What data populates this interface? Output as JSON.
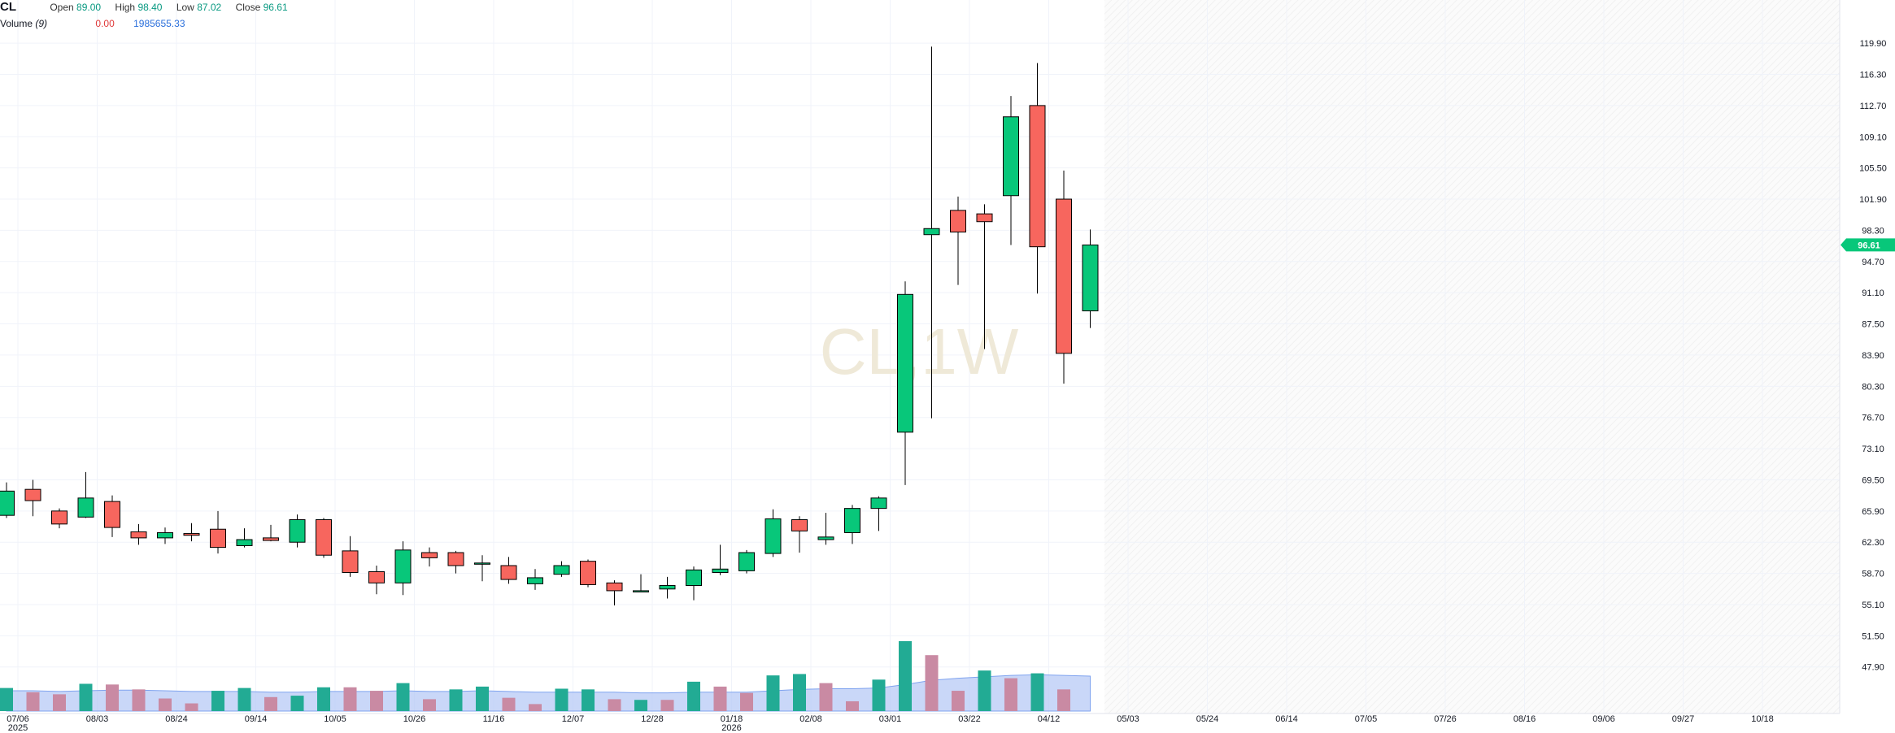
{
  "header": {
    "symbol": "CL",
    "open_label": "Open",
    "open": "89.00",
    "high_label": "High",
    "high": "98.40",
    "low_label": "Low",
    "low": "87.02",
    "close_label": "Close",
    "close": "96.61",
    "volume_label": "Volume",
    "volume_period": "(9)",
    "volume_change": "0.00",
    "volume_ma": "1985655.33"
  },
  "watermark": "CL,1W",
  "colors": {
    "up": "#08c77a",
    "down": "#f7665e",
    "up_volume": "#22ab94",
    "down_volume": "#c98aa3",
    "volume_ma_fill": "#b7c9f5",
    "price_tag": "#08c77a"
  },
  "chart_data": {
    "type": "candlestick",
    "x_axis_ticks": [
      "07/06",
      "08/03",
      "08/24",
      "09/14",
      "10/05",
      "10/26",
      "11/16",
      "12/07",
      "12/28",
      "01/18",
      "02/08",
      "03/01",
      "03/22",
      "04/12",
      "05/03",
      "05/24",
      "06/14",
      "07/05",
      "07/26",
      "08/16",
      "09/06",
      "09/27",
      "10/18"
    ],
    "x_axis_year_labels": [
      {
        "under": "07/06",
        "text": "2025"
      },
      {
        "under": "01/18",
        "text": "2026"
      }
    ],
    "y_axis_ticks": [
      "119.90",
      "116.30",
      "112.70",
      "109.10",
      "105.50",
      "101.90",
      "98.30",
      "94.70",
      "91.10",
      "87.50",
      "83.90",
      "80.30",
      "76.70",
      "73.10",
      "69.50",
      "65.90",
      "62.30",
      "58.70",
      "55.10",
      "51.50",
      "47.90"
    ],
    "ylim": [
      46.0,
      121.6
    ],
    "last_price": "96.61",
    "weeks": 42,
    "candles": [
      {
        "o": 65.4,
        "h": 69.2,
        "l": 65.1,
        "c": 68.2
      },
      {
        "o": 68.4,
        "h": 69.5,
        "l": 65.3,
        "c": 67.1
      },
      {
        "o": 65.9,
        "h": 66.2,
        "l": 63.9,
        "c": 64.4
      },
      {
        "o": 65.2,
        "h": 70.4,
        "l": 65.1,
        "c": 67.4
      },
      {
        "o": 67.0,
        "h": 67.7,
        "l": 62.9,
        "c": 64.0
      },
      {
        "o": 63.5,
        "h": 64.4,
        "l": 62.0,
        "c": 62.8
      },
      {
        "o": 62.8,
        "h": 64.0,
        "l": 62.1,
        "c": 63.4
      },
      {
        "o": 63.3,
        "h": 64.5,
        "l": 62.4,
        "c": 63.1
      },
      {
        "o": 63.8,
        "h": 65.9,
        "l": 61.0,
        "c": 61.7
      },
      {
        "o": 61.9,
        "h": 63.9,
        "l": 61.7,
        "c": 62.6
      },
      {
        "o": 62.8,
        "h": 64.3,
        "l": 62.4,
        "c": 62.5
      },
      {
        "o": 62.3,
        "h": 65.5,
        "l": 61.7,
        "c": 64.9
      },
      {
        "o": 64.9,
        "h": 65.1,
        "l": 60.5,
        "c": 60.8
      },
      {
        "o": 61.3,
        "h": 63.0,
        "l": 58.3,
        "c": 58.8
      },
      {
        "o": 58.9,
        "h": 59.6,
        "l": 56.3,
        "c": 57.6
      },
      {
        "o": 57.6,
        "h": 62.4,
        "l": 56.2,
        "c": 61.4
      },
      {
        "o": 61.1,
        "h": 61.7,
        "l": 59.5,
        "c": 60.5
      },
      {
        "o": 61.1,
        "h": 61.3,
        "l": 58.7,
        "c": 59.6
      },
      {
        "o": 59.8,
        "h": 60.8,
        "l": 57.8,
        "c": 59.9
      },
      {
        "o": 59.6,
        "h": 60.6,
        "l": 57.5,
        "c": 58.0
      },
      {
        "o": 57.5,
        "h": 59.2,
        "l": 56.8,
        "c": 58.2
      },
      {
        "o": 58.6,
        "h": 60.1,
        "l": 58.3,
        "c": 59.6
      },
      {
        "o": 60.1,
        "h": 60.3,
        "l": 57.1,
        "c": 57.4
      },
      {
        "o": 57.6,
        "h": 57.9,
        "l": 55.0,
        "c": 56.7
      },
      {
        "o": 56.6,
        "h": 58.6,
        "l": 56.6,
        "c": 56.7
      },
      {
        "o": 56.9,
        "h": 58.3,
        "l": 55.8,
        "c": 57.3
      },
      {
        "o": 57.3,
        "h": 59.5,
        "l": 55.6,
        "c": 59.1
      },
      {
        "o": 58.8,
        "h": 62.0,
        "l": 58.5,
        "c": 59.2
      },
      {
        "o": 59.0,
        "h": 61.4,
        "l": 58.7,
        "c": 61.1
      },
      {
        "o": 61.0,
        "h": 66.1,
        "l": 60.6,
        "c": 65.0
      },
      {
        "o": 64.9,
        "h": 65.3,
        "l": 61.1,
        "c": 63.6
      },
      {
        "o": 62.6,
        "h": 65.7,
        "l": 62.0,
        "c": 62.9
      },
      {
        "o": 63.4,
        "h": 66.6,
        "l": 62.1,
        "c": 66.2
      },
      {
        "o": 66.2,
        "h": 67.6,
        "l": 63.6,
        "c": 67.4
      },
      {
        "o": 75.0,
        "h": 92.4,
        "l": 68.9,
        "c": 90.9
      },
      {
        "o": 97.8,
        "h": 119.5,
        "l": 76.6,
        "c": 98.5
      },
      {
        "o": 100.6,
        "h": 102.2,
        "l": 92.0,
        "c": 98.1
      },
      {
        "o": 100.2,
        "h": 101.3,
        "l": 84.6,
        "c": 99.3
      },
      {
        "o": 102.3,
        "h": 113.8,
        "l": 96.6,
        "c": 111.4
      },
      {
        "o": 112.7,
        "h": 117.6,
        "l": 91.0,
        "c": 96.4
      },
      {
        "o": 101.9,
        "h": 105.2,
        "l": 80.6,
        "c": 84.1
      },
      {
        "o": 89.0,
        "h": 98.4,
        "l": 87.02,
        "c": 96.61
      }
    ],
    "volume": [
      {
        "v": 0.33,
        "up": true
      },
      {
        "v": 0.27,
        "up": false
      },
      {
        "v": 0.24,
        "up": false
      },
      {
        "v": 0.39,
        "up": true
      },
      {
        "v": 0.38,
        "up": false
      },
      {
        "v": 0.31,
        "up": false
      },
      {
        "v": 0.18,
        "up": false
      },
      {
        "v": 0.11,
        "up": false
      },
      {
        "v": 0.29,
        "up": true
      },
      {
        "v": 0.33,
        "up": true
      },
      {
        "v": 0.2,
        "up": false
      },
      {
        "v": 0.22,
        "up": true
      },
      {
        "v": 0.34,
        "up": true
      },
      {
        "v": 0.34,
        "up": false
      },
      {
        "v": 0.29,
        "up": false
      },
      {
        "v": 0.4,
        "up": true
      },
      {
        "v": 0.17,
        "up": false
      },
      {
        "v": 0.31,
        "up": true
      },
      {
        "v": 0.35,
        "up": true
      },
      {
        "v": 0.19,
        "up": false
      },
      {
        "v": 0.1,
        "up": false
      },
      {
        "v": 0.32,
        "up": true
      },
      {
        "v": 0.31,
        "up": true
      },
      {
        "v": 0.17,
        "up": false
      },
      {
        "v": 0.16,
        "up": true
      },
      {
        "v": 0.16,
        "up": false
      },
      {
        "v": 0.42,
        "up": true
      },
      {
        "v": 0.35,
        "up": false
      },
      {
        "v": 0.26,
        "up": false
      },
      {
        "v": 0.51,
        "up": true
      },
      {
        "v": 0.53,
        "up": true
      },
      {
        "v": 0.4,
        "up": false
      },
      {
        "v": 0.14,
        "up": false
      },
      {
        "v": 0.45,
        "up": true
      },
      {
        "v": 1.0,
        "up": true
      },
      {
        "v": 0.8,
        "up": false
      },
      {
        "v": 0.29,
        "up": false
      },
      {
        "v": 0.58,
        "up": true
      },
      {
        "v": 0.47,
        "up": false
      },
      {
        "v": 0.54,
        "up": true
      },
      {
        "v": 0.31,
        "up": false
      },
      {
        "v": 0,
        "up": true
      }
    ],
    "volume_ma": [
      0.29,
      0.29,
      0.28,
      0.29,
      0.3,
      0.3,
      0.29,
      0.28,
      0.28,
      0.28,
      0.27,
      0.27,
      0.28,
      0.28,
      0.28,
      0.29,
      0.28,
      0.28,
      0.29,
      0.28,
      0.27,
      0.27,
      0.27,
      0.27,
      0.26,
      0.26,
      0.27,
      0.27,
      0.27,
      0.29,
      0.31,
      0.32,
      0.32,
      0.33,
      0.38,
      0.44,
      0.47,
      0.49,
      0.51,
      0.52,
      0.51,
      0.5
    ],
    "grid": true
  }
}
